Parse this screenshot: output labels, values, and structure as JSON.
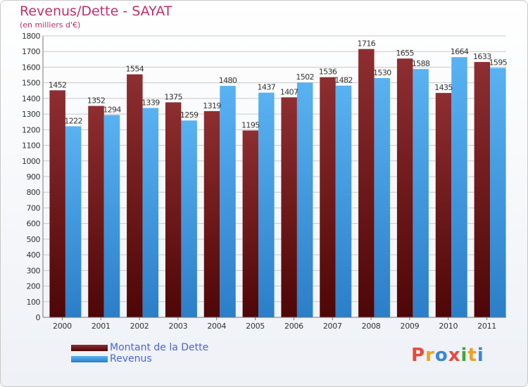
{
  "chart_data": {
    "type": "bar",
    "title": "Revenus/Dette - SAYAT",
    "subtitle": "(en milliers d'€)",
    "categories": [
      "2000",
      "2001",
      "2002",
      "2003",
      "2004",
      "2005",
      "2006",
      "2007",
      "2008",
      "2009",
      "2010",
      "2011"
    ],
    "series": [
      {
        "name": "Montant de la Dette",
        "values": [
          1452,
          1352,
          1554,
          1375,
          1319,
          1195,
          1407,
          1536,
          1716,
          1655,
          1435,
          1633
        ],
        "color": "#7a1f24"
      },
      {
        "name": "Revenus",
        "values": [
          1222,
          1294,
          1339,
          1259,
          1480,
          1437,
          1502,
          1482,
          1530,
          1588,
          1664,
          1595
        ],
        "color": "#3d9be6"
      }
    ],
    "ylim": [
      0,
      1800
    ],
    "yticks": [
      0,
      100,
      200,
      300,
      400,
      500,
      600,
      700,
      800,
      900,
      1000,
      1100,
      1200,
      1300,
      1400,
      1500,
      1600,
      1700,
      1800
    ],
    "grid": true,
    "legend": "bottom-left"
  },
  "logo": {
    "text": "Proxiti",
    "letter_colors": [
      "#e8483b",
      "#f0a020",
      "#3a86d8",
      "#e8483b",
      "#3aaa3a",
      "#f0a020",
      "#3a86d8"
    ]
  }
}
